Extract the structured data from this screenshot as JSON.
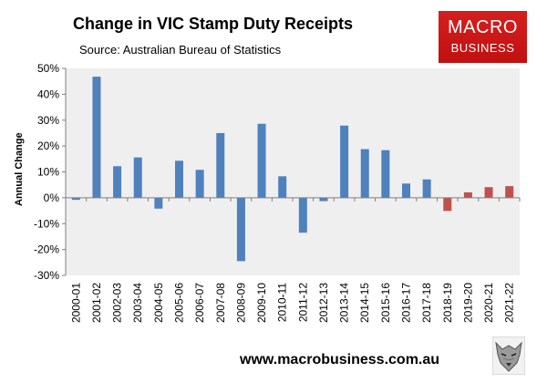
{
  "header": {
    "title": "Change in VIC Stamp Duty Receipts",
    "subtitle": "Source: Australian Bureau of Statistics"
  },
  "logo": {
    "line1": "MACRO",
    "line2": "BUSINESS",
    "background": "#cc1818"
  },
  "footer": {
    "url": "www.macrobusiness.com.au",
    "icon": "wolf-logo-icon"
  },
  "chart_data": {
    "type": "bar",
    "title": "Change in VIC Stamp Duty Receipts",
    "subtitle": "Source: Australian Bureau of Statistics",
    "xlabel": "",
    "ylabel": "Annual Change",
    "ylim": [
      -30,
      50
    ],
    "ytick_step": 10,
    "ytick_labels": [
      "50%",
      "40%",
      "30%",
      "20%",
      "10%",
      "0%",
      "-10%",
      "-20%",
      "-30%"
    ],
    "grid": false,
    "legend": "none",
    "categories": [
      "2000-01",
      "2001-02",
      "2002-03",
      "2003-04",
      "2004-05",
      "2005-06",
      "2006-07",
      "2007-08",
      "2008-09",
      "2009-10",
      "2010-11",
      "2011-12",
      "2012-13",
      "2013-14",
      "2014-15",
      "2015-16",
      "2016-17",
      "2017-18",
      "2018-19",
      "2019-20",
      "2020-21",
      "2021-22"
    ],
    "values": [
      -0.8,
      46.8,
      12.2,
      15.6,
      -4.2,
      14.3,
      10.8,
      25.0,
      -24.5,
      28.6,
      8.3,
      -13.5,
      -1.3,
      27.9,
      18.8,
      18.4,
      5.5,
      7.1,
      -5.1,
      2.1,
      4.1,
      4.5
    ],
    "colors": {
      "actual": "#4f81bd",
      "recent": "#c0504d",
      "plot_background": "#efefef"
    },
    "recent_from_index": 18
  }
}
